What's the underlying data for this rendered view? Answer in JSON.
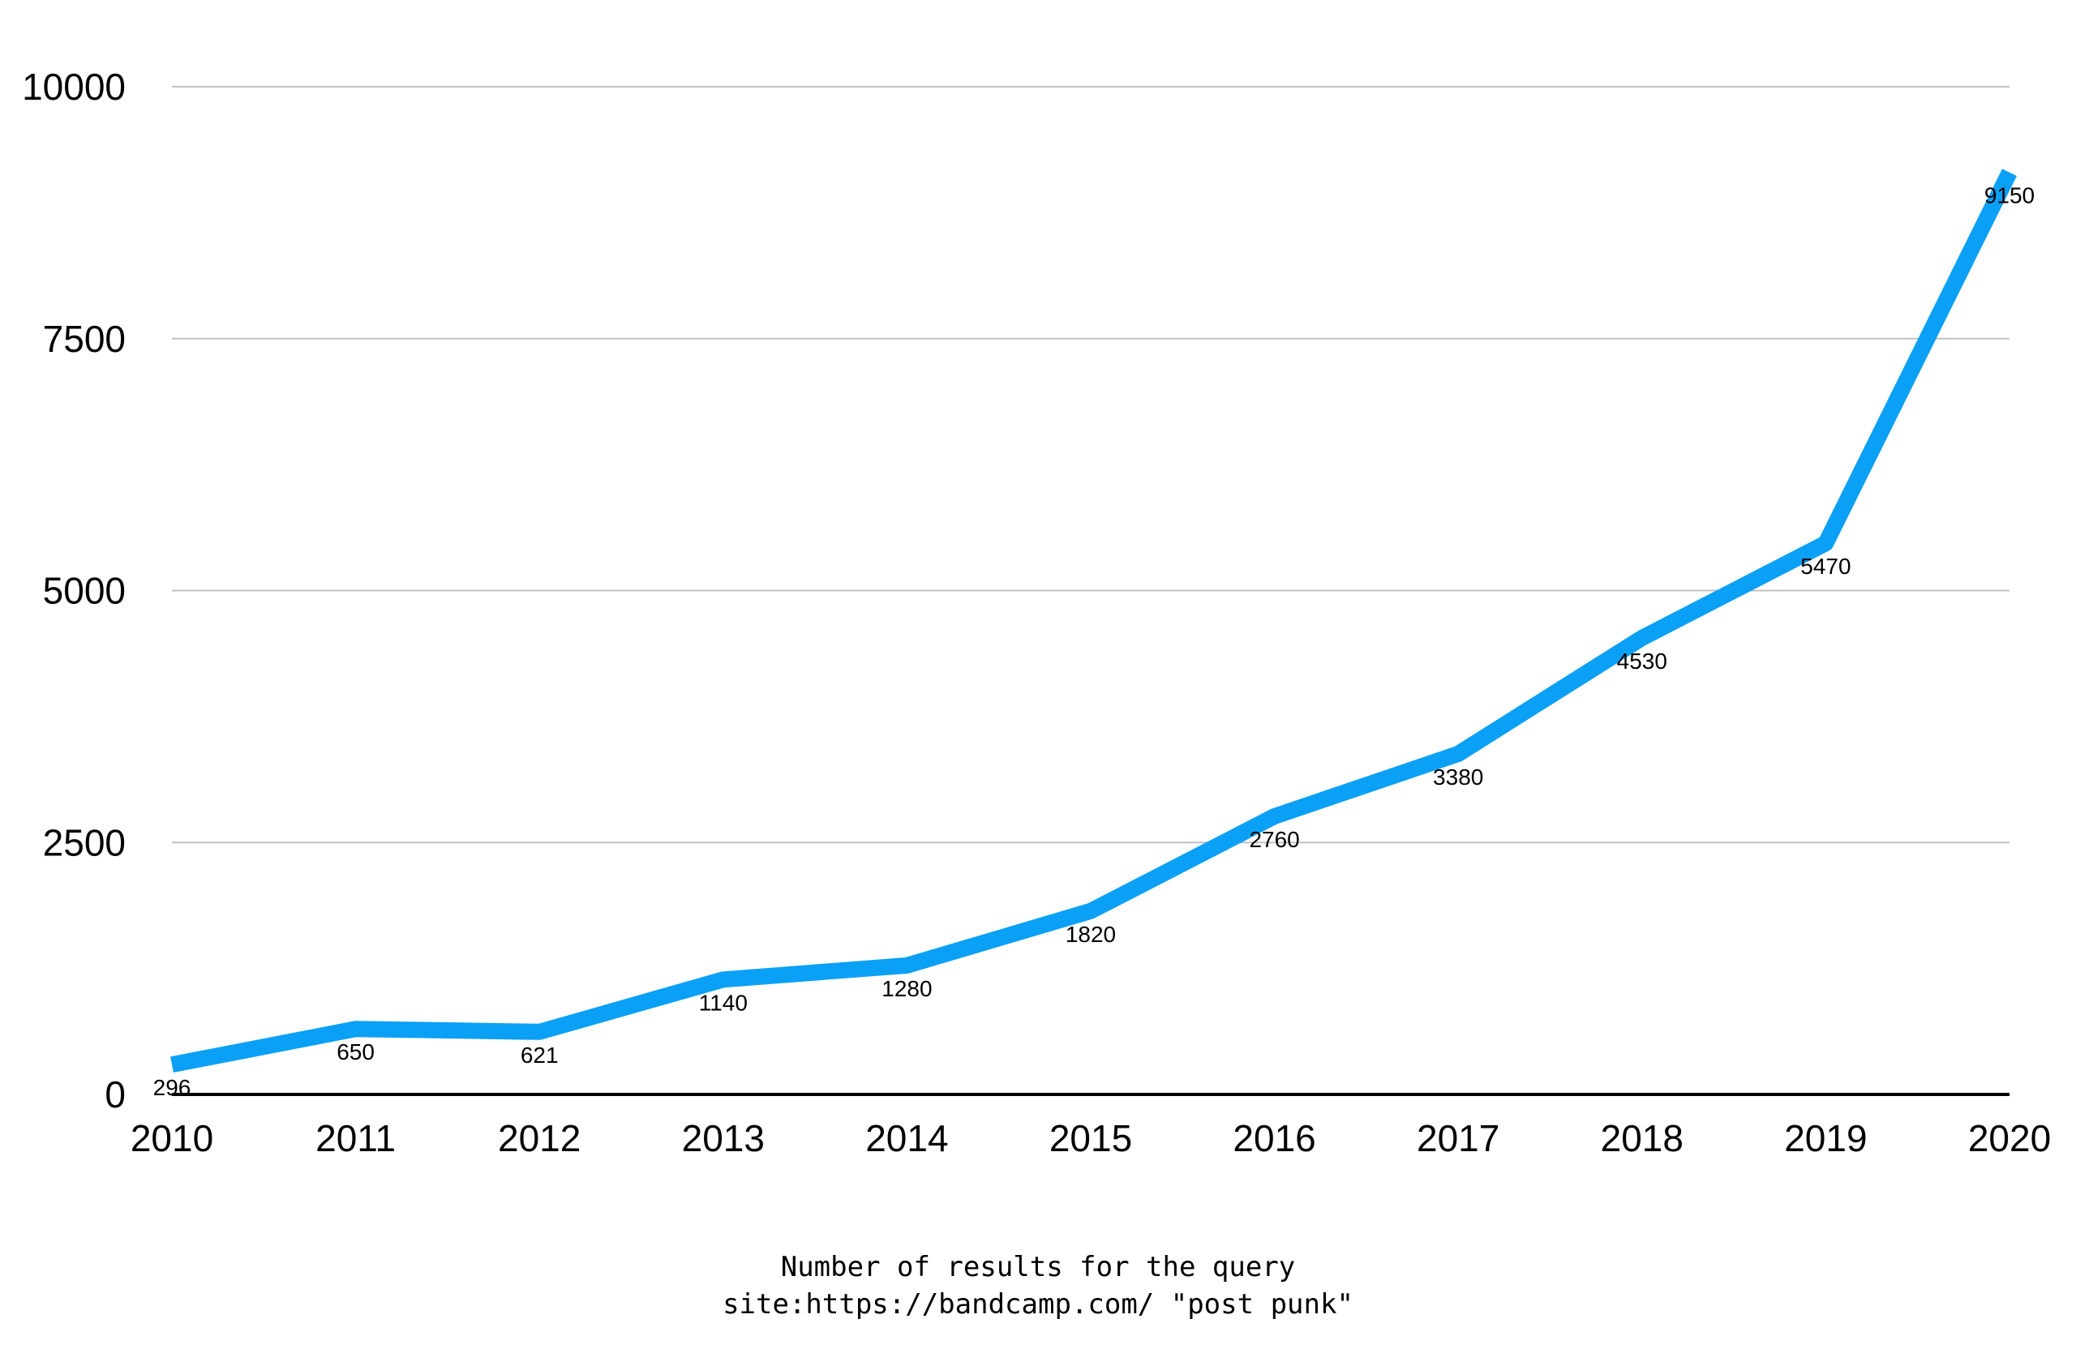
{
  "caption": {
    "line1": "Number of results for the query",
    "line2": "site:https://bandcamp.com/ \"post punk\""
  },
  "chart_data": {
    "type": "line",
    "title": "",
    "xlabel": "",
    "ylabel": "",
    "categories": [
      "2010",
      "2011",
      "2012",
      "2013",
      "2014",
      "2015",
      "2016",
      "2017",
      "2018",
      "2019",
      "2020"
    ],
    "series": [
      {
        "values": [
          296,
          650,
          621,
          1140,
          1280,
          1820,
          2760,
          3380,
          4530,
          5470,
          9150
        ]
      }
    ],
    "data_labels": [
      "296",
      "650",
      "621",
      "1140",
      "1280",
      "1820",
      "2760",
      "3380",
      "4530",
      "5470",
      "9150"
    ],
    "ylim": [
      0,
      10000
    ],
    "yticks": [
      "0",
      "2500",
      "5000",
      "7500",
      "10000"
    ],
    "ytick_values": [
      0,
      2500,
      5000,
      7500,
      10000
    ],
    "grid": true,
    "legend": "none",
    "colors": {
      "line": "#0aa0f5",
      "grid": "#c0c0c0",
      "axis": "#000000"
    }
  }
}
